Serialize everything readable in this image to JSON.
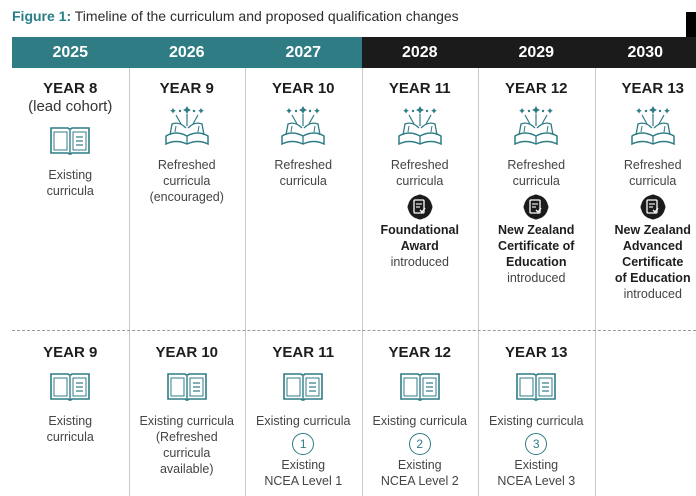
{
  "title": {
    "label": "Figure 1:",
    "text": " Timeline of the curriculum and proposed qualification changes"
  },
  "years": [
    {
      "label": "2025",
      "style": "teal"
    },
    {
      "label": "2026",
      "style": "teal"
    },
    {
      "label": "2027",
      "style": "teal"
    },
    {
      "label": "2028",
      "style": "dark"
    },
    {
      "label": "2029",
      "style": "dark"
    },
    {
      "label": "2030",
      "style": "dark"
    }
  ],
  "row1": [
    {
      "year": "YEAR 8",
      "sub": "(lead cohort)",
      "icon": "book-icon",
      "lines": [
        "Existing",
        "curricula"
      ]
    },
    {
      "year": "YEAR 9",
      "icon": "open-book-sparkle-icon",
      "lines": [
        "Refreshed",
        "curricula",
        "(encouraged)"
      ]
    },
    {
      "year": "YEAR 10",
      "icon": "open-book-sparkle-icon",
      "lines": [
        "Refreshed",
        "curricula"
      ]
    },
    {
      "year": "YEAR 11",
      "icon": "open-book-sparkle-icon",
      "lines": [
        "Refreshed",
        "curricula"
      ],
      "badge": "certificate-badge-icon",
      "qual_bold": [
        "Foundational",
        "Award"
      ],
      "qual_note": [
        "introduced"
      ]
    },
    {
      "year": "YEAR 12",
      "icon": "open-book-sparkle-icon",
      "lines": [
        "Refreshed",
        "curricula"
      ],
      "badge": "certificate-badge-icon",
      "qual_bold": [
        "New Zealand",
        "Certificate of",
        "Education"
      ],
      "qual_note": [
        "introduced"
      ]
    },
    {
      "year": "YEAR 13",
      "icon": "open-book-sparkle-icon",
      "lines": [
        "Refreshed",
        "curricula"
      ],
      "badge": "certificate-badge-icon",
      "qual_bold": [
        "New Zealand",
        "Advanced",
        "Certificate",
        "of Education"
      ],
      "qual_note": [
        "introduced"
      ]
    }
  ],
  "row2": [
    {
      "year": "YEAR 9",
      "icon": "book-icon",
      "lines": [
        "Existing",
        "curricula"
      ]
    },
    {
      "year": "YEAR 10",
      "icon": "book-icon",
      "lines": [
        "Existing curricula",
        "(Refreshed",
        "curricula",
        "available)"
      ]
    },
    {
      "year": "YEAR 11",
      "icon": "book-icon",
      "lines": [
        "Existing curricula"
      ],
      "level": "1",
      "level_lines": [
        "Existing",
        "NCEA Level 1"
      ]
    },
    {
      "year": "YEAR 12",
      "icon": "book-icon",
      "lines": [
        "Existing curricula"
      ],
      "level": "2",
      "level_lines": [
        "Existing",
        "NCEA Level 2"
      ]
    },
    {
      "year": "YEAR 13",
      "icon": "book-icon",
      "lines": [
        "Existing curricula"
      ],
      "level": "3",
      "level_lines": [
        "Existing",
        "NCEA Level 3"
      ]
    }
  ]
}
